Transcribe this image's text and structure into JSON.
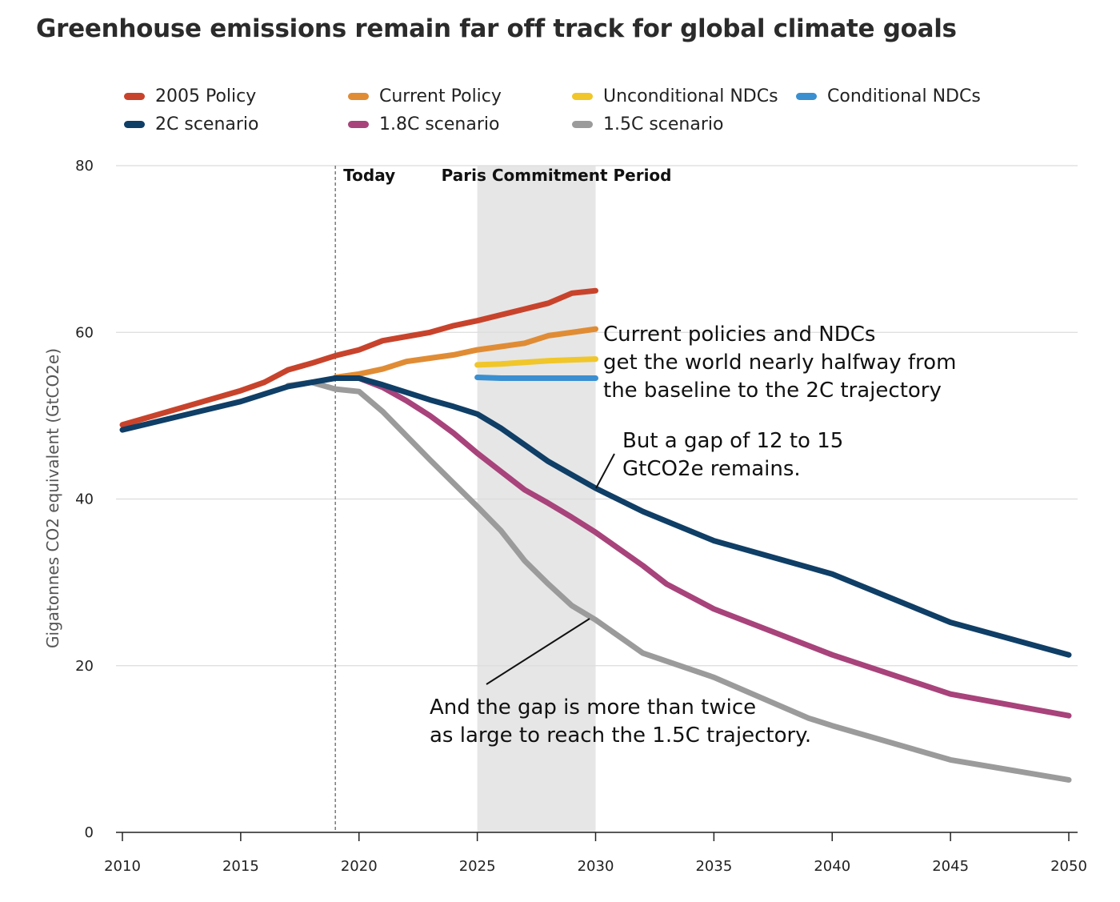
{
  "title": "Greenhouse emissions remain far off track for global climate goals",
  "chart_data": {
    "type": "line",
    "title": "Greenhouse emissions remain far off track for global climate goals",
    "xlabel": "",
    "ylabel": "Gigatonnes CO2 equivalent (GtCO2e)",
    "xlim": [
      2010,
      2050
    ],
    "ylim": [
      0,
      80
    ],
    "x_ticks": [
      "2010",
      "2015",
      "2020",
      "2025",
      "2030",
      "2035",
      "2040",
      "2045",
      "2050"
    ],
    "y_ticks": [
      "0",
      "20",
      "40",
      "60",
      "80"
    ],
    "grid": "horizontal",
    "legend_position": "top",
    "series": [
      {
        "name": "2005 Policy",
        "color": "#c8432b",
        "points": [
          [
            2010,
            48.9
          ],
          [
            2015,
            53
          ],
          [
            2016,
            54
          ],
          [
            2017,
            55.5
          ],
          [
            2018,
            56.3
          ],
          [
            2019,
            57.2
          ],
          [
            2020,
            57.9
          ],
          [
            2021,
            59
          ],
          [
            2022,
            59.5
          ],
          [
            2023,
            60
          ],
          [
            2024,
            60.8
          ],
          [
            2025,
            61.4
          ],
          [
            2026,
            62.1
          ],
          [
            2027,
            62.8
          ],
          [
            2028,
            63.5
          ],
          [
            2029,
            64.7
          ],
          [
            2030,
            65
          ]
        ]
      },
      {
        "name": "Current Policy",
        "color": "#e08c35",
        "points": [
          [
            2019,
            54.6
          ],
          [
            2020,
            55
          ],
          [
            2021,
            55.6
          ],
          [
            2022,
            56.5
          ],
          [
            2023,
            56.9
          ],
          [
            2024,
            57.3
          ],
          [
            2025,
            57.9
          ],
          [
            2026,
            58.3
          ],
          [
            2027,
            58.7
          ],
          [
            2028,
            59.6
          ],
          [
            2029,
            60
          ],
          [
            2030,
            60.4
          ]
        ]
      },
      {
        "name": "Unconditional NDCs",
        "color": "#f0c62a",
        "points": [
          [
            2025,
            56.1
          ],
          [
            2026,
            56.2
          ],
          [
            2027,
            56.4
          ],
          [
            2028,
            56.6
          ],
          [
            2029,
            56.7
          ],
          [
            2030,
            56.8
          ]
        ]
      },
      {
        "name": "Conditional NDCs",
        "color": "#3a8fd1",
        "points": [
          [
            2025,
            54.6
          ],
          [
            2026,
            54.5
          ],
          [
            2027,
            54.5
          ],
          [
            2028,
            54.5
          ],
          [
            2029,
            54.5
          ],
          [
            2030,
            54.5
          ]
        ]
      },
      {
        "name": "2C scenario",
        "color": "#0f3e66",
        "points": [
          [
            2010,
            48.3
          ],
          [
            2015,
            51.7
          ],
          [
            2017,
            53.5
          ],
          [
            2019,
            54.5
          ],
          [
            2020,
            54.5
          ],
          [
            2021,
            53.7
          ],
          [
            2022,
            52.8
          ],
          [
            2023,
            51.9
          ],
          [
            2024,
            51.1
          ],
          [
            2025,
            50.2
          ],
          [
            2026,
            48.5
          ],
          [
            2027,
            46.5
          ],
          [
            2028,
            44.5
          ],
          [
            2029,
            42.9
          ],
          [
            2030,
            41.3
          ],
          [
            2032,
            38.5
          ],
          [
            2035,
            35
          ],
          [
            2040,
            31
          ],
          [
            2045,
            25.2
          ],
          [
            2050,
            21.3
          ]
        ]
      },
      {
        "name": "1.8C scenario",
        "color": "#a8437b",
        "points": [
          [
            2020,
            54.5
          ],
          [
            2021,
            53.4
          ],
          [
            2022,
            51.8
          ],
          [
            2023,
            50
          ],
          [
            2024,
            47.9
          ],
          [
            2025,
            45.5
          ],
          [
            2026,
            43.3
          ],
          [
            2027,
            41.1
          ],
          [
            2028,
            39.5
          ],
          [
            2029,
            37.8
          ],
          [
            2030,
            36
          ],
          [
            2032,
            32
          ],
          [
            2033,
            29.8
          ],
          [
            2035,
            26.8
          ],
          [
            2040,
            21.3
          ],
          [
            2045,
            16.6
          ],
          [
            2050,
            14
          ]
        ]
      },
      {
        "name": "1.5C scenario",
        "color": "#9b9b9b",
        "points": [
          [
            2017,
            53.6
          ],
          [
            2018,
            54
          ],
          [
            2019,
            53.2
          ],
          [
            2020,
            52.9
          ],
          [
            2021,
            50.5
          ],
          [
            2022,
            47.6
          ],
          [
            2023,
            44.7
          ],
          [
            2024,
            41.9
          ],
          [
            2025,
            39.1
          ],
          [
            2026,
            36.2
          ],
          [
            2027,
            32.6
          ],
          [
            2028,
            29.8
          ],
          [
            2029,
            27.2
          ],
          [
            2030,
            25.5
          ],
          [
            2032,
            21.5
          ],
          [
            2035,
            18.6
          ],
          [
            2039,
            13.7
          ],
          [
            2040,
            12.8
          ],
          [
            2045,
            8.7
          ],
          [
            2050,
            6.3
          ]
        ]
      }
    ],
    "annotations": {
      "today_label": "Today",
      "today_x": 2019,
      "period_label": "Paris Commitment Period",
      "period_range": [
        2025,
        2030
      ],
      "note1": [
        "Current policies and NDCs",
        "get the world nearly halfway from",
        "the baseline to the 2C trajectory"
      ],
      "note2": [
        "But a gap of 12 to 15",
        "GtCO2e remains."
      ],
      "note3": [
        "And the gap is more than twice",
        "as large to reach the 1.5C trajectory."
      ]
    }
  }
}
